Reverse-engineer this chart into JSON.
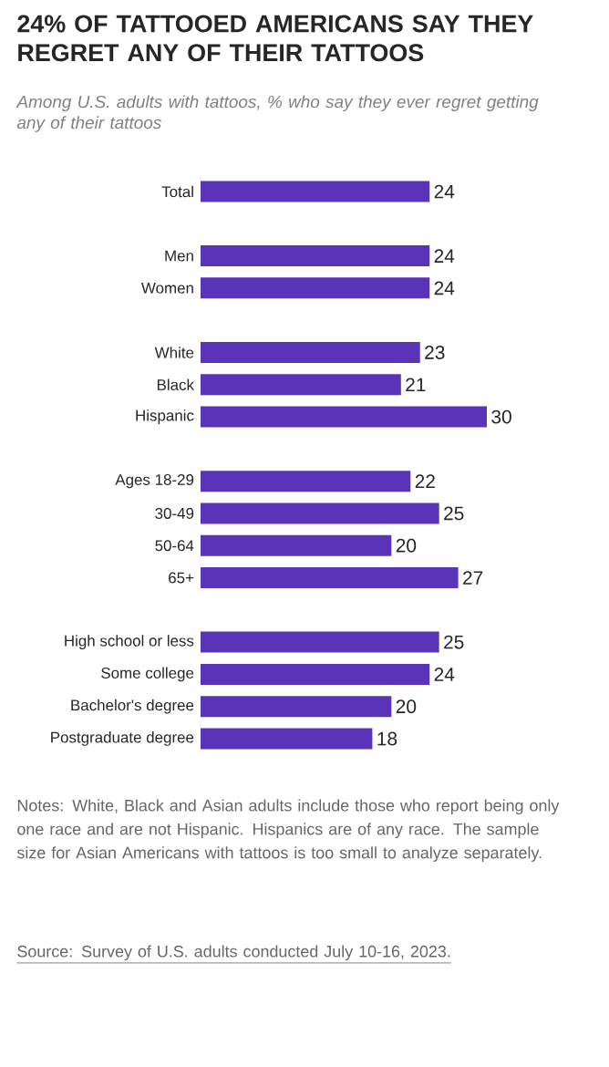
{
  "chart_data": {
    "type": "bar",
    "orientation": "horizontal",
    "data_labels": true,
    "color": "#5a34b8",
    "title": "24% OF TATTOOED AMERICANS SAY THEY REGRET ANY OF THEIR TATTOOS",
    "subtitle": "Among U.S. adults with tattoos, % who say they ever regret getting any of their tattoos",
    "categories": [
      "Total",
      null,
      "Men",
      "Women",
      null,
      "White",
      "Black",
      "Hispanic",
      null,
      "Ages 18-29",
      "30-49",
      "50-64",
      "65+",
      null,
      "High school or less",
      "Some college",
      "Bachelor's degree",
      "Postgraduate degree"
    ],
    "values": [
      24,
      null,
      24,
      24,
      null,
      23,
      21,
      30,
      null,
      22,
      25,
      20,
      27,
      null,
      25,
      24,
      20,
      18
    ],
    "annotations": [
      "Notes: White, Black and Asian adults include those who report being only one race and are not Hispanic. Hispanics are of any race. The sample size for Asian Americans with tattoos is too small to analyze separately.",
      "Source: Survey of U.S. adults conducted July 10-16, 2023."
    ]
  }
}
